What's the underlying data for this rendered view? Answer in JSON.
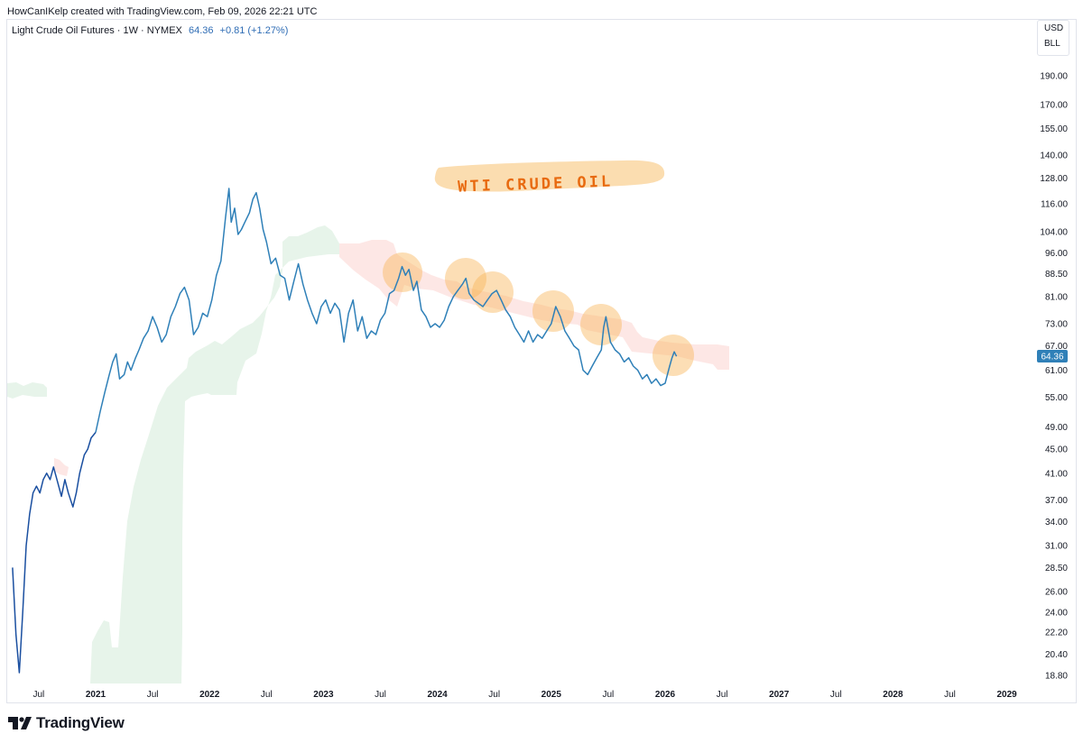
{
  "header": {
    "attribution": "HowCanIKelp created with TradingView.com, Feb 09, 2026 22:21 UTC"
  },
  "legend": {
    "symbol": "Light Crude Oil Futures · 1W · NYMEX",
    "last": "64.36",
    "change": "+0.81 (+1.27%)"
  },
  "currency": {
    "unit": "USD",
    "measure": "BLL"
  },
  "annotation": {
    "text": "WTI CRUDE OIL"
  },
  "footer": {
    "brand": "TradingView"
  },
  "colors": {
    "line": "#2f80b8",
    "line_dark": "#1a4fa0",
    "cloud_green": "#e3f2e6",
    "cloud_red": "#fde3e1",
    "highlight": "#f9b55a",
    "label_bg": "#2f80b8"
  },
  "chart_data": {
    "type": "line",
    "scale": "log",
    "ylim": [
      18.8,
      200
    ],
    "yticks": [
      "190.00",
      "170.00",
      "155.00",
      "140.00",
      "128.00",
      "116.00",
      "104.00",
      "96.00",
      "88.50",
      "81.00",
      "73.00",
      "67.00",
      "61.00",
      "55.00",
      "49.00",
      "45.00",
      "41.00",
      "37.00",
      "34.00",
      "31.00",
      "28.50",
      "26.00",
      "24.00",
      "22.20",
      "20.40",
      "18.80"
    ],
    "xticks": [
      {
        "label": "Jul",
        "t": 2020.5,
        "bold": false
      },
      {
        "label": "2021",
        "t": 2021.0,
        "bold": true
      },
      {
        "label": "Jul",
        "t": 2021.5,
        "bold": false
      },
      {
        "label": "2022",
        "t": 2022.0,
        "bold": true
      },
      {
        "label": "Jul",
        "t": 2022.5,
        "bold": false
      },
      {
        "label": "2023",
        "t": 2023.0,
        "bold": true
      },
      {
        "label": "Jul",
        "t": 2023.5,
        "bold": false
      },
      {
        "label": "2024",
        "t": 2024.0,
        "bold": true
      },
      {
        "label": "Jul",
        "t": 2024.5,
        "bold": false
      },
      {
        "label": "2025",
        "t": 2025.0,
        "bold": true
      },
      {
        "label": "Jul",
        "t": 2025.5,
        "bold": false
      },
      {
        "label": "2026",
        "t": 2026.0,
        "bold": true
      },
      {
        "label": "Jul",
        "t": 2026.5,
        "bold": false
      },
      {
        "label": "2027",
        "t": 2027.0,
        "bold": true
      },
      {
        "label": "Jul",
        "t": 2027.5,
        "bold": false
      },
      {
        "label": "2028",
        "t": 2028.0,
        "bold": true
      },
      {
        "label": "Jul",
        "t": 2028.5,
        "bold": false
      },
      {
        "label": "2029",
        "t": 2029.0,
        "bold": true
      }
    ],
    "last_price_label": "64.36",
    "series": [
      {
        "points": [
          [
            2020.27,
            28.5
          ],
          [
            2020.3,
            22
          ],
          [
            2020.33,
            19
          ],
          [
            2020.36,
            24
          ],
          [
            2020.39,
            31
          ],
          [
            2020.42,
            35
          ],
          [
            2020.45,
            38
          ],
          [
            2020.48,
            39
          ],
          [
            2020.51,
            38
          ],
          [
            2020.54,
            40
          ],
          [
            2020.57,
            41
          ],
          [
            2020.6,
            40
          ],
          [
            2020.63,
            42
          ],
          [
            2020.66,
            40
          ],
          [
            2020.7,
            37.5
          ],
          [
            2020.73,
            40
          ],
          [
            2020.76,
            38
          ],
          [
            2020.8,
            36
          ],
          [
            2020.83,
            38
          ],
          [
            2020.86,
            41
          ],
          [
            2020.9,
            44
          ],
          [
            2020.93,
            45
          ],
          [
            2020.96,
            47
          ],
          [
            2021.0,
            48
          ],
          [
            2021.04,
            52
          ],
          [
            2021.08,
            56
          ],
          [
            2021.12,
            60
          ],
          [
            2021.15,
            63
          ],
          [
            2021.18,
            65
          ],
          [
            2021.21,
            59
          ],
          [
            2021.25,
            60
          ],
          [
            2021.28,
            63
          ],
          [
            2021.31,
            61
          ],
          [
            2021.35,
            64
          ],
          [
            2021.38,
            66
          ],
          [
            2021.42,
            69
          ],
          [
            2021.46,
            71
          ],
          [
            2021.5,
            75
          ],
          [
            2021.54,
            72
          ],
          [
            2021.58,
            68
          ],
          [
            2021.62,
            70
          ],
          [
            2021.66,
            75
          ],
          [
            2021.7,
            78
          ],
          [
            2021.74,
            82
          ],
          [
            2021.78,
            84
          ],
          [
            2021.82,
            80
          ],
          [
            2021.86,
            70
          ],
          [
            2021.9,
            72
          ],
          [
            2021.94,
            76
          ],
          [
            2021.98,
            75
          ],
          [
            2022.02,
            80
          ],
          [
            2022.06,
            88
          ],
          [
            2022.1,
            93
          ],
          [
            2022.14,
            110
          ],
          [
            2022.17,
            123
          ],
          [
            2022.19,
            108
          ],
          [
            2022.22,
            114
          ],
          [
            2022.25,
            103
          ],
          [
            2022.28,
            105
          ],
          [
            2022.31,
            108
          ],
          [
            2022.35,
            112
          ],
          [
            2022.38,
            118
          ],
          [
            2022.41,
            121
          ],
          [
            2022.44,
            114
          ],
          [
            2022.47,
            105
          ],
          [
            2022.5,
            100
          ],
          [
            2022.54,
            92
          ],
          [
            2022.58,
            94
          ],
          [
            2022.62,
            88
          ],
          [
            2022.66,
            87
          ],
          [
            2022.7,
            80
          ],
          [
            2022.74,
            86
          ],
          [
            2022.78,
            92
          ],
          [
            2022.82,
            85
          ],
          [
            2022.86,
            80
          ],
          [
            2022.9,
            76
          ],
          [
            2022.94,
            73
          ],
          [
            2022.98,
            78
          ],
          [
            2023.02,
            80
          ],
          [
            2023.06,
            76
          ],
          [
            2023.1,
            79
          ],
          [
            2023.14,
            77
          ],
          [
            2023.18,
            68
          ],
          [
            2023.22,
            76
          ],
          [
            2023.26,
            80
          ],
          [
            2023.3,
            71
          ],
          [
            2023.34,
            75
          ],
          [
            2023.38,
            69
          ],
          [
            2023.42,
            71
          ],
          [
            2023.46,
            70
          ],
          [
            2023.5,
            74
          ],
          [
            2023.54,
            76
          ],
          [
            2023.58,
            82
          ],
          [
            2023.62,
            83
          ],
          [
            2023.66,
            87
          ],
          [
            2023.69,
            91
          ],
          [
            2023.72,
            88
          ],
          [
            2023.75,
            90
          ],
          [
            2023.79,
            83
          ],
          [
            2023.82,
            86
          ],
          [
            2023.86,
            77
          ],
          [
            2023.9,
            75
          ],
          [
            2023.94,
            72
          ],
          [
            2023.98,
            73
          ],
          [
            2024.02,
            72
          ],
          [
            2024.06,
            74
          ],
          [
            2024.1,
            78
          ],
          [
            2024.14,
            81
          ],
          [
            2024.18,
            83
          ],
          [
            2024.22,
            85
          ],
          [
            2024.25,
            87
          ],
          [
            2024.28,
            82
          ],
          [
            2024.32,
            80
          ],
          [
            2024.36,
            79
          ],
          [
            2024.4,
            78
          ],
          [
            2024.44,
            80
          ],
          [
            2024.48,
            82
          ],
          [
            2024.52,
            83
          ],
          [
            2024.56,
            80
          ],
          [
            2024.6,
            77
          ],
          [
            2024.64,
            75
          ],
          [
            2024.68,
            72
          ],
          [
            2024.72,
            70
          ],
          [
            2024.76,
            68
          ],
          [
            2024.8,
            71
          ],
          [
            2024.84,
            68
          ],
          [
            2024.88,
            70
          ],
          [
            2024.92,
            69
          ],
          [
            2024.96,
            71
          ],
          [
            2025.0,
            73
          ],
          [
            2025.04,
            78
          ],
          [
            2025.08,
            75
          ],
          [
            2025.12,
            71
          ],
          [
            2025.16,
            69
          ],
          [
            2025.2,
            67
          ],
          [
            2025.24,
            66
          ],
          [
            2025.28,
            61
          ],
          [
            2025.32,
            60
          ],
          [
            2025.36,
            62
          ],
          [
            2025.4,
            64
          ],
          [
            2025.44,
            66
          ],
          [
            2025.46,
            72
          ],
          [
            2025.48,
            75
          ],
          [
            2025.52,
            68
          ],
          [
            2025.56,
            66
          ],
          [
            2025.6,
            65
          ],
          [
            2025.64,
            63
          ],
          [
            2025.68,
            64
          ],
          [
            2025.72,
            62
          ],
          [
            2025.76,
            61
          ],
          [
            2025.8,
            59
          ],
          [
            2025.84,
            60
          ],
          [
            2025.88,
            58
          ],
          [
            2025.92,
            59
          ],
          [
            2025.96,
            57.5
          ],
          [
            2026.0,
            58
          ],
          [
            2026.02,
            60
          ],
          [
            2026.04,
            62
          ],
          [
            2026.06,
            64
          ],
          [
            2026.08,
            65.5
          ],
          [
            2026.1,
            64.36
          ]
        ]
      }
    ]
  }
}
